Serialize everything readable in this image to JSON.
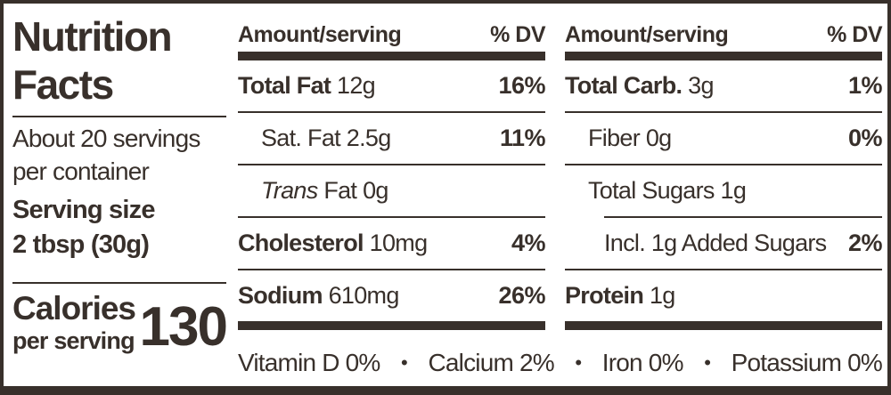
{
  "colors": {
    "ink": "#38302b",
    "background": "#ffffff"
  },
  "left": {
    "title_line1": "Nutrition",
    "title_line2": "Facts",
    "servings_line1": "About 20 servings",
    "servings_line2": "per container",
    "serving_size_line1": "Serving size",
    "serving_size_line2": "2 tbsp (30g)",
    "calories_label": "Calories",
    "calories_sub": "per serving",
    "calories_value": "130"
  },
  "columns": [
    {
      "header": {
        "amount": "Amount/serving",
        "dv": "% DV"
      },
      "rows": [
        {
          "name": "Total Fat",
          "amount": "12g",
          "dv": "16%"
        },
        {
          "name": "Sat. Fat",
          "amount": "2.5g",
          "dv": "11%"
        },
        {
          "name_italic": "Trans",
          "name_rest": "Fat",
          "amount": "0g",
          "dv": ""
        },
        {
          "name": "Cholesterol",
          "amount": "10mg",
          "dv": "4%"
        },
        {
          "name": "Sodium",
          "amount": "610mg",
          "dv": "26%"
        }
      ]
    },
    {
      "header": {
        "amount": "Amount/serving",
        "dv": "% DV"
      },
      "rows": [
        {
          "name": "Total Carb.",
          "amount": "3g",
          "dv": "1%"
        },
        {
          "name": "Fiber",
          "amount": "0g",
          "dv": "0%"
        },
        {
          "name": "Total Sugars",
          "amount": "1g",
          "dv": ""
        },
        {
          "name": "Incl. 1g Added Sugars",
          "amount": "",
          "dv": "2%"
        },
        {
          "name": "Protein",
          "amount": "1g",
          "dv": ""
        }
      ]
    }
  ],
  "vitamins": {
    "bullet": "•",
    "items": [
      "Vitamin D 0%",
      "Calcium 2%",
      "Iron 0%",
      "Potassium 0%"
    ]
  }
}
